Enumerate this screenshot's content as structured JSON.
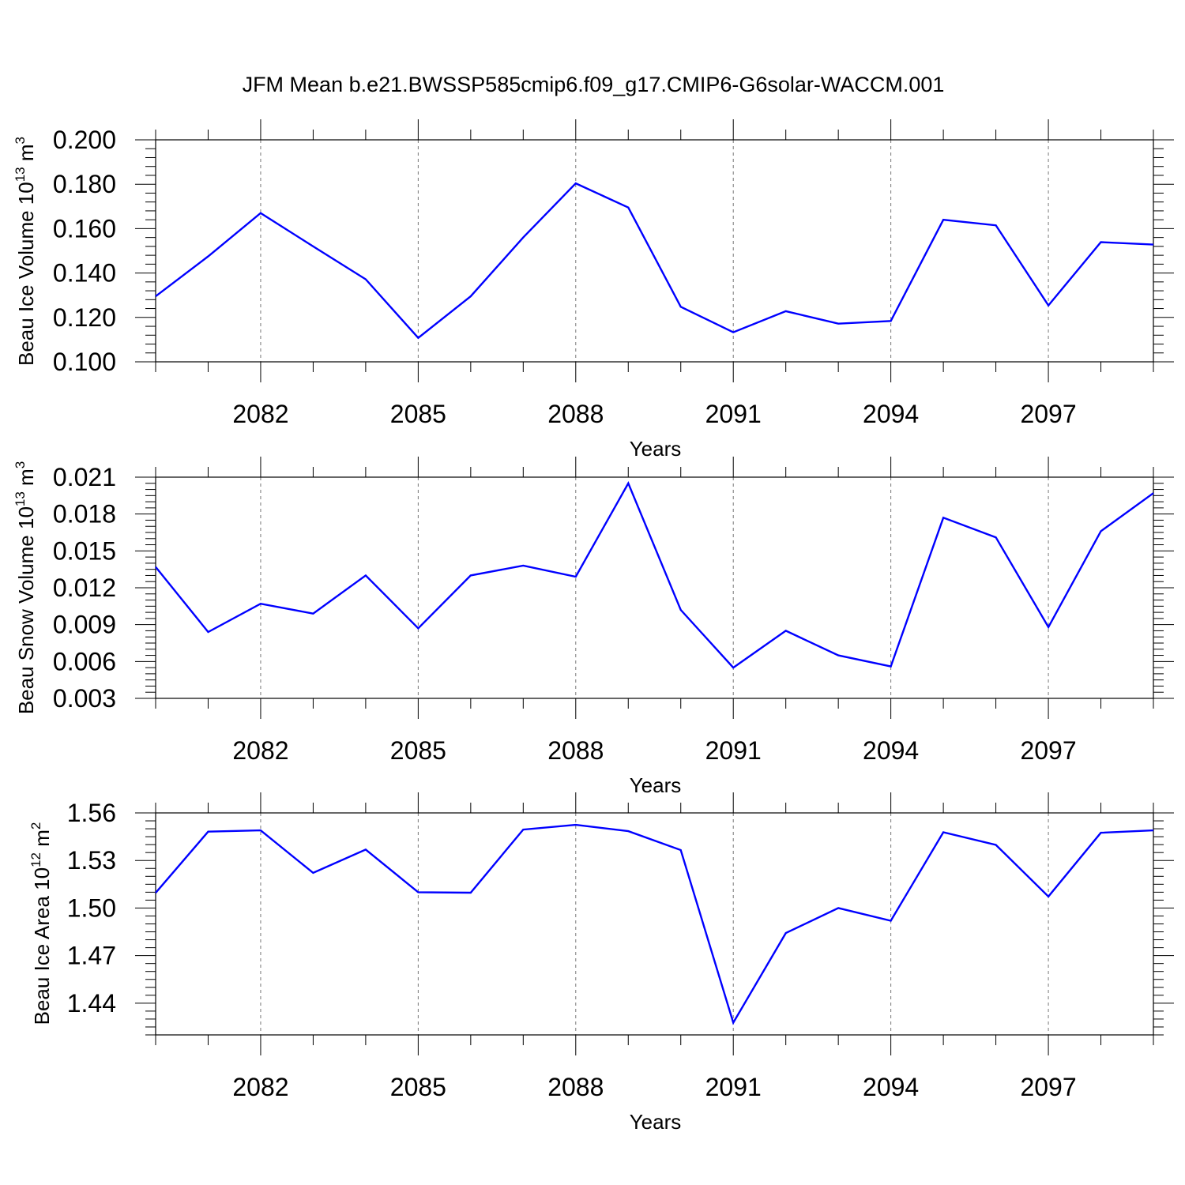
{
  "title": "JFM Mean b.e21.BWSSP585cmip6.f09_g17.CMIP6-G6solar-WACCM.001",
  "colors": {
    "line": "#0000ff",
    "axis": "#000000",
    "grid": "#777777"
  },
  "chart_data": [
    {
      "type": "line",
      "ylabel": {
        "main": "Beau Ice Volume 10",
        "exp": "13",
        "unit": " m",
        "unit_exp": "3"
      },
      "xlabel": "Years",
      "xlim": [
        2080,
        2099
      ],
      "ylim": [
        0.1,
        0.2
      ],
      "xticks": [
        2082,
        2085,
        2088,
        2091,
        2094,
        2097
      ],
      "yticks": [
        0.1,
        0.12,
        0.14,
        0.16,
        0.18,
        0.2
      ],
      "ytick_labels": [
        "0.100",
        "0.120",
        "0.140",
        "0.160",
        "0.180",
        "0.200"
      ],
      "grid": "vertical dashed at major x ticks",
      "series": [
        {
          "x": [
            2080,
            2081,
            2082,
            2083,
            2084,
            2085,
            2086,
            2087,
            2088,
            2089,
            2090,
            2091,
            2092,
            2093,
            2094,
            2095,
            2096,
            2097,
            2098,
            2099
          ],
          "values": [
            0.1295,
            0.1475,
            0.167,
            0.152,
            0.1372,
            0.1108,
            0.1295,
            0.156,
            0.1804,
            0.1695,
            0.1248,
            0.1133,
            0.1228,
            0.1172,
            0.1184,
            0.164,
            0.1615,
            0.1254,
            0.1539,
            0.1528
          ]
        }
      ]
    },
    {
      "type": "line",
      "ylabel": {
        "main": "Beau Snow Volume 10",
        "exp": "13",
        "unit": " m",
        "unit_exp": "3"
      },
      "xlabel": "Years",
      "xlim": [
        2080,
        2099
      ],
      "ylim": [
        0.003,
        0.021
      ],
      "xticks": [
        2082,
        2085,
        2088,
        2091,
        2094,
        2097
      ],
      "yticks": [
        0.003,
        0.006,
        0.009,
        0.012,
        0.015,
        0.018,
        0.021
      ],
      "ytick_labels": [
        "0.003",
        "0.006",
        "0.009",
        "0.012",
        "0.015",
        "0.018",
        "0.021"
      ],
      "grid": "vertical dashed at major x ticks",
      "series": [
        {
          "x": [
            2080,
            2081,
            2082,
            2083,
            2084,
            2085,
            2086,
            2087,
            2088,
            2089,
            2090,
            2091,
            2092,
            2093,
            2094,
            2095,
            2096,
            2097,
            2098,
            2099
          ],
          "values": [
            0.0137,
            0.0084,
            0.0107,
            0.0099,
            0.013,
            0.0087,
            0.013,
            0.0138,
            0.0129,
            0.0205,
            0.0102,
            0.0055,
            0.0085,
            0.0065,
            0.0056,
            0.0177,
            0.0161,
            0.0088,
            0.0166,
            0.0197
          ]
        }
      ]
    },
    {
      "type": "line",
      "ylabel": {
        "main": "Beau Ice Area 10",
        "exp": "12",
        "unit": " m",
        "unit_exp": "2"
      },
      "xlabel": "Years",
      "xlim": [
        2080,
        2099
      ],
      "ylim": [
        1.42,
        1.56
      ],
      "xticks": [
        2082,
        2085,
        2088,
        2091,
        2094,
        2097
      ],
      "yticks": [
        1.44,
        1.47,
        1.5,
        1.53,
        1.56
      ],
      "ytick_labels": [
        "1.44",
        "1.47",
        "1.50",
        "1.53",
        "1.56"
      ],
      "grid": "vertical dashed at major x ticks",
      "series": [
        {
          "x": [
            2080,
            2081,
            2082,
            2083,
            2084,
            2085,
            2086,
            2087,
            2088,
            2089,
            2090,
            2091,
            2092,
            2093,
            2094,
            2095,
            2096,
            2097,
            2098,
            2099
          ],
          "values": [
            1.5096,
            1.5482,
            1.549,
            1.5222,
            1.5369,
            1.51,
            1.5097,
            1.5495,
            1.5525,
            1.5485,
            1.5366,
            1.4277,
            1.4842,
            1.5,
            1.492,
            1.5478,
            1.5398,
            1.5073,
            1.5475,
            1.549
          ]
        }
      ]
    }
  ]
}
